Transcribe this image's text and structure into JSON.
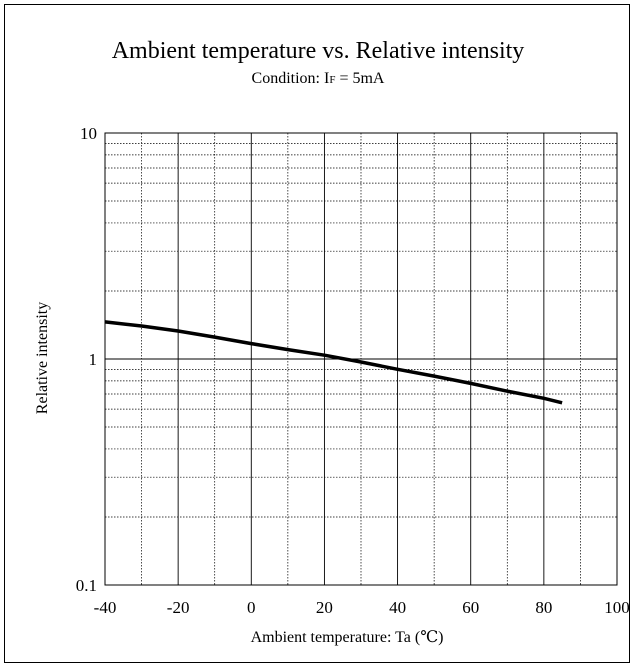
{
  "chart_data": {
    "type": "line",
    "title": "Ambient temperature vs. Relative intensity",
    "subtitle": {
      "prefix": "Condition: I",
      "subscript": "F",
      "suffix": " = 5mA"
    },
    "xlabel": "Ambient temperature: Ta (℃)",
    "ylabel": "Relative intensity",
    "xlim": [
      -40,
      100
    ],
    "ylim": [
      0.1,
      10
    ],
    "yscale": "log",
    "grid": true,
    "x_ticks": [
      -40,
      -20,
      0,
      20,
      40,
      60,
      80,
      100
    ],
    "x_tick_labels": [
      "-40",
      "-20",
      "0",
      "20",
      "40",
      "60",
      "80",
      "100"
    ],
    "y_ticks": [
      0.1,
      1,
      10
    ],
    "y_tick_labels": [
      "0.1",
      "1",
      "10"
    ],
    "series": [
      {
        "x": [
          -40,
          -30,
          -20,
          -10,
          0,
          10,
          20,
          30,
          40,
          50,
          60,
          70,
          80,
          85
        ],
        "y": [
          1.46,
          1.4,
          1.33,
          1.25,
          1.17,
          1.1,
          1.04,
          0.97,
          0.9,
          0.84,
          0.78,
          0.72,
          0.67,
          0.64
        ],
        "color": "#000000"
      }
    ]
  }
}
